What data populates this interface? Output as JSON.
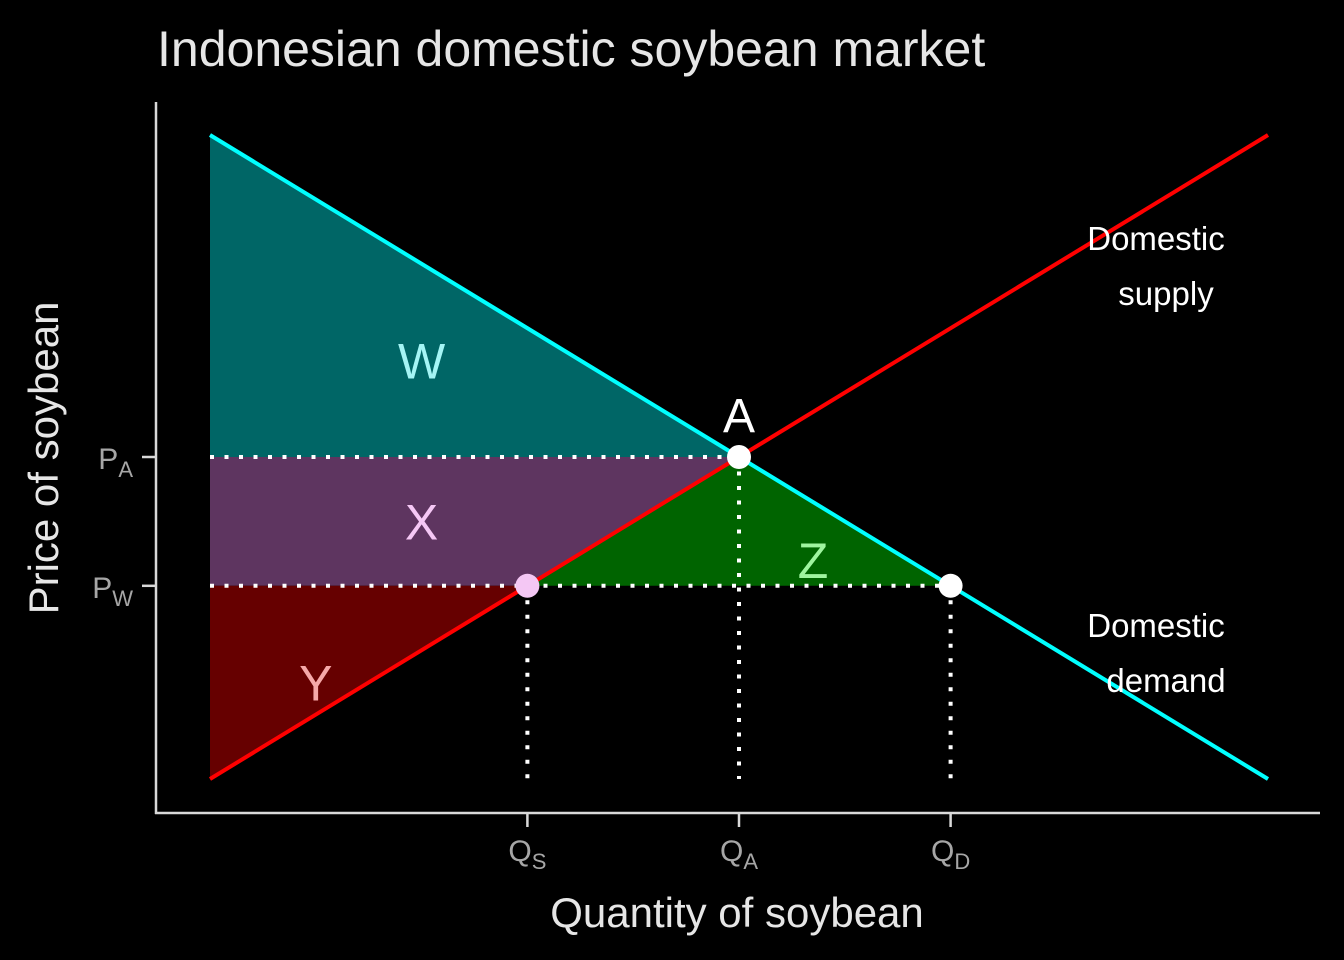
{
  "chart_data": {
    "type": "line",
    "title": "Indonesian domestic soybean market",
    "xlabel": "Quantity of soybean",
    "ylabel": "Price of soybean",
    "grid": false,
    "xlim": [
      0,
      10
    ],
    "ylim": [
      0,
      10
    ],
    "colors": {
      "supply": "#ff0000",
      "demand": "#00ffff",
      "area_W": "#006666",
      "area_X": "#5e3560",
      "area_Y": "#660000",
      "area_Z": "#006400",
      "label_W": "#a4f5f5",
      "label_X": "#f5c8f5",
      "label_Y": "#f5a8a8",
      "label_Z": "#9ff59f",
      "guide": "#ffffff",
      "point": "#ffffff",
      "point_qs": "#f4c7f4"
    },
    "series": [
      {
        "name": "Domestic supply",
        "label_lines": [
          "Domestic",
          "supply"
        ],
        "x": [
          0,
          10
        ],
        "y": [
          0,
          10
        ]
      },
      {
        "name": "Domestic demand",
        "label_lines": [
          "Domestic",
          "demand"
        ],
        "x": [
          0,
          10
        ],
        "y": [
          10,
          0
        ]
      }
    ],
    "price_levels": [
      {
        "key": "PA",
        "main": "P",
        "sub": "A",
        "value": 5
      },
      {
        "key": "PW",
        "main": "P",
        "sub": "W",
        "value": 3
      }
    ],
    "quantity_levels": [
      {
        "key": "QS",
        "main": "Q",
        "sub": "S",
        "value": 3
      },
      {
        "key": "QA",
        "main": "Q",
        "sub": "A",
        "value": 5
      },
      {
        "key": "QD",
        "main": "Q",
        "sub": "D",
        "value": 7
      }
    ],
    "areas": [
      {
        "label": "W",
        "points": [
          [
            0,
            10
          ],
          [
            5,
            5
          ],
          [
            0,
            5
          ]
        ],
        "label_at": [
          2,
          6.5
        ]
      },
      {
        "label": "X",
        "points": [
          [
            0,
            5
          ],
          [
            5,
            5
          ],
          [
            3,
            3
          ],
          [
            0,
            3
          ]
        ],
        "label_at": [
          2,
          4
        ]
      },
      {
        "label": "Y",
        "points": [
          [
            0,
            3
          ],
          [
            3,
            3
          ],
          [
            0,
            0
          ]
        ],
        "label_at": [
          1,
          1.5
        ]
      },
      {
        "label": "Z",
        "points": [
          [
            3,
            3
          ],
          [
            5,
            5
          ],
          [
            7,
            3
          ]
        ],
        "label_at": [
          5.7,
          3.4
        ]
      }
    ],
    "points": [
      {
        "label": "A",
        "x": 5,
        "y": 5
      },
      {
        "label": "",
        "x": 3,
        "y": 3
      },
      {
        "label": "",
        "x": 7,
        "y": 3
      }
    ]
  }
}
